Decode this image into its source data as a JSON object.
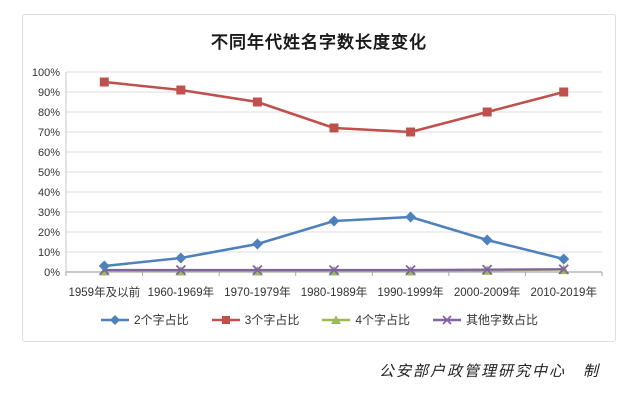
{
  "chart_data": {
    "type": "line",
    "title": "不同年代姓名字数长度变化",
    "categories": [
      "1959年及以前",
      "1960-1969年",
      "1970-1979年",
      "1980-1989年",
      "1990-1999年",
      "2000-2009年",
      "2010-2019年"
    ],
    "series": [
      {
        "name": "2个字占比",
        "color": "#4F81BD",
        "marker": "diamond",
        "values": [
          3,
          7,
          14,
          25.5,
          27.5,
          16,
          6.5
        ]
      },
      {
        "name": "3个字占比",
        "color": "#C0504D",
        "marker": "square",
        "values": [
          95,
          91,
          85,
          72,
          70,
          80,
          90
        ]
      },
      {
        "name": "4个字占比",
        "color": "#9BBB59",
        "marker": "triangle",
        "values": [
          0.5,
          0.5,
          0.5,
          0.5,
          0.5,
          0.8,
          1.2
        ]
      },
      {
        "name": "其他字数占比",
        "color": "#8064A2",
        "marker": "x",
        "values": [
          1,
          1,
          1,
          1,
          1,
          1.2,
          1.4
        ]
      }
    ],
    "y_axis": {
      "min": 0,
      "max": 100,
      "step": 10,
      "tick_labels": [
        "0%",
        "10%",
        "20%",
        "30%",
        "40%",
        "50%",
        "60%",
        "70%",
        "80%",
        "90%",
        "100%"
      ]
    },
    "grid": true,
    "legend_position": "bottom",
    "colors": {
      "gridline": "#DCDCDC",
      "axis": "#A6A6A6",
      "tick_text": "#333333"
    }
  },
  "footer": {
    "credit": "公安部户政管理研究中心　制"
  }
}
